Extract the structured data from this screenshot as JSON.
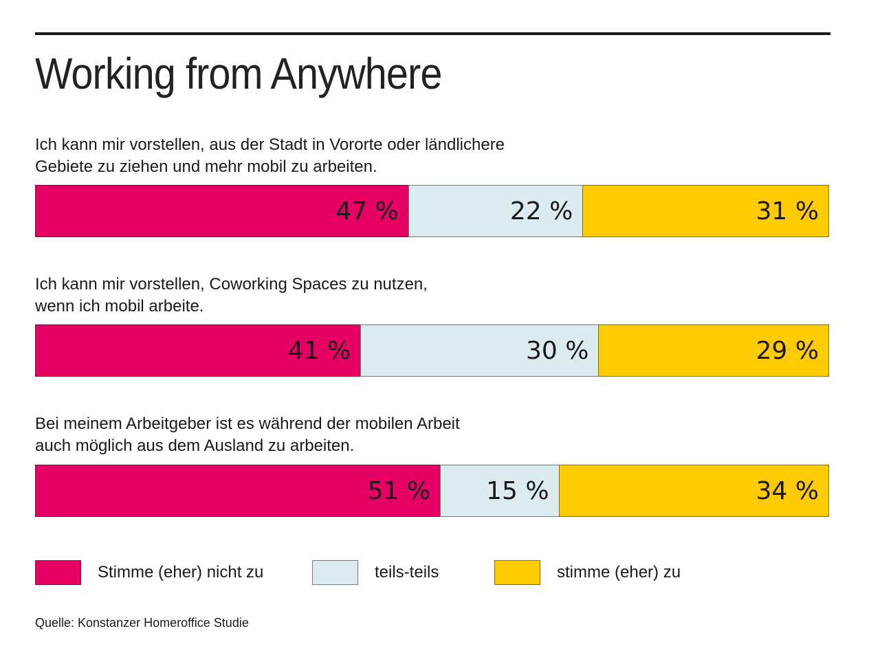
{
  "header": {
    "title": "Working from Anywhere"
  },
  "colors": {
    "disagree": "#e60064",
    "neutral": "#dcebf0",
    "agree": "#fecb00",
    "text": "#1a1a1a",
    "rule": "#1a1a1a"
  },
  "chart_data": {
    "type": "bar",
    "variant": "horizontal-stacked",
    "unit": "%",
    "title": "Working from Anywhere",
    "legend_position": "bottom",
    "categories": [
      "Stimme (eher) nicht zu",
      "teils-teils",
      "stimme (eher) zu"
    ],
    "series_colors": [
      "#e60064",
      "#dcebf0",
      "#fecb00"
    ],
    "rows": [
      {
        "question": "Ich kann mir vorstellen, aus der Stadt in Vororte oder ländlichere\nGebiete zu ziehen und mehr mobil zu arbeiten.",
        "values": [
          47,
          22,
          31
        ],
        "segments": [
          {
            "label": "47 %",
            "value": 47,
            "width": "47%",
            "color": "#e60064"
          },
          {
            "label": "22 %",
            "value": 22,
            "width": "22%",
            "color": "#dcebf0"
          },
          {
            "label": "31 %",
            "value": 31,
            "width": "31%",
            "color": "#fecb00"
          }
        ]
      },
      {
        "question": "Ich kann mir vorstellen, Coworking Spaces zu nutzen,\nwenn ich mobil arbeite.",
        "values": [
          41,
          30,
          29
        ],
        "segments": [
          {
            "label": "41 %",
            "value": 41,
            "width": "41%",
            "color": "#e60064"
          },
          {
            "label": "30 %",
            "value": 30,
            "width": "30%",
            "color": "#dcebf0"
          },
          {
            "label": "29 %",
            "value": 29,
            "width": "29%",
            "color": "#fecb00"
          }
        ]
      },
      {
        "question": "Bei meinem Arbeitgeber ist es während der mobilen Arbeit\nauch möglich aus dem Ausland zu arbeiten.",
        "values": [
          51,
          15,
          34
        ],
        "segments": [
          {
            "label": "51 %",
            "value": 51,
            "width": "51%",
            "color": "#e60064"
          },
          {
            "label": "15 %",
            "value": 15,
            "width": "15%",
            "color": "#dcebf0"
          },
          {
            "label": "34 %",
            "value": 34,
            "width": "34%",
            "color": "#fecb00"
          }
        ]
      }
    ],
    "legend": [
      {
        "label": "Stimme (eher) nicht zu",
        "color": "#e60064"
      },
      {
        "label": "teils-teils",
        "color": "#dcebf0"
      },
      {
        "label": "stimme (eher) zu",
        "color": "#fecb00"
      }
    ],
    "source": "Quelle: Konstanzer Homeroffice Studie"
  }
}
